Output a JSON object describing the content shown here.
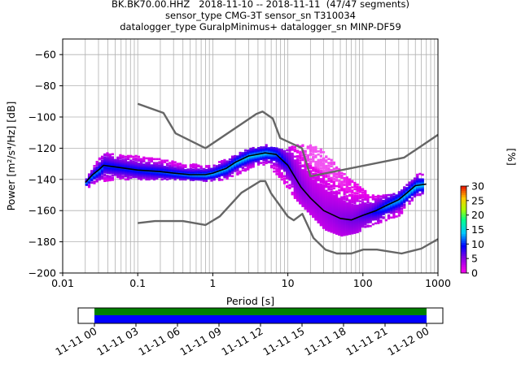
{
  "title": {
    "line1": "BK.BK70.00.HHZ   2018-11-10 -- 2018-11-11  (47/47 segments)",
    "line2": "sensor_type CMG-3T sensor_sn T310034",
    "line3": "datalogger_type GuralpMinimus+ datalogger_sn MINP-DF59"
  },
  "chart_data": {
    "type": "heatmap",
    "xlabel": "Period [s]",
    "ylabel": "Power [m²/s⁴/Hz] [dB]",
    "xscale": "log",
    "xlim": [
      0.01,
      1000
    ],
    "ylim": [
      -200,
      -50
    ],
    "grid": true,
    "x_tick_labels": [
      "0.01",
      "0.1",
      "1",
      "10",
      "100",
      "1000"
    ],
    "x_tick_values": [
      0.01,
      0.1,
      1,
      10,
      100,
      1000
    ],
    "y_tick_values": [
      -200,
      -180,
      -160,
      -140,
      -120,
      -100,
      -80,
      -60
    ],
    "y_tick_labels": [
      "−200",
      "−180",
      "−160",
      "−140",
      "−120",
      "−100",
      "−80",
      "−60"
    ],
    "colorbar": {
      "label": "[%]",
      "range": [
        0,
        30
      ],
      "tick_values": [
        0,
        5,
        10,
        15,
        20,
        25,
        30
      ],
      "tick_labels": [
        "0",
        "5",
        "10",
        "15",
        "20",
        "25",
        "30"
      ]
    },
    "series": [
      {
        "name": "",
        "kind": "median",
        "color": "#000000",
        "x": [
          0.02,
          0.025,
          0.03,
          0.035,
          0.05,
          0.1,
          0.2,
          0.3,
          0.5,
          0.8,
          1.0,
          1.5,
          2.0,
          3.0,
          5.0,
          7.0,
          10.0,
          15.0,
          20.0,
          30.0,
          50.0,
          70.0,
          100.0,
          150.0,
          200.0,
          300.0,
          400.0,
          500.0,
          700.0
        ],
        "y": [
          -142,
          -137,
          -134,
          -131,
          -132,
          -134,
          -135,
          -136,
          -137,
          -137,
          -136,
          -133,
          -129,
          -125,
          -123,
          -124,
          -131,
          -145,
          -152,
          -160,
          -165,
          -166,
          -163,
          -160,
          -157,
          -153,
          -148,
          -144,
          -143
        ]
      },
      {
        "name": "",
        "kind": "high_noise_model",
        "color": "#666666",
        "x": [
          0.1,
          0.22,
          0.32,
          0.8,
          3.8,
          4.6,
          6.3,
          7.9,
          15.4,
          20.0,
          354.8,
          1000.0
        ],
        "y": [
          -91.5,
          -97.4,
          -110.5,
          -120.0,
          -98.0,
          -96.5,
          -101.0,
          -113.5,
          -120.0,
          -138.0,
          -126.0,
          -111.4
        ]
      },
      {
        "name": "",
        "kind": "low_noise_model",
        "color": "#666666",
        "x": [
          0.1,
          0.17,
          0.4,
          0.8,
          1.24,
          2.4,
          4.3,
          5.0,
          6.0,
          10.0,
          12.0,
          15.6,
          21.9,
          31.6,
          45.0,
          70.0,
          101.0,
          154.0,
          328.0,
          600.0,
          1000.0
        ],
        "y": [
          -168.0,
          -166.7,
          -166.7,
          -169.2,
          -163.7,
          -148.6,
          -141.1,
          -141.1,
          -149.0,
          -163.8,
          -166.2,
          -162.1,
          -177.5,
          -185.0,
          -187.5,
          -187.5,
          -185.0,
          -185.0,
          -187.5,
          -184.4,
          -178.3
        ]
      }
    ],
    "density_bands": [
      {
        "x": 0.02,
        "y_min": -146,
        "y_max": -139,
        "pct": 12
      },
      {
        "x": 0.03,
        "y_min": -140,
        "y_max": -126,
        "pct": 12
      },
      {
        "x": 0.035,
        "y_min": -141,
        "y_max": -123,
        "pct": 10
      },
      {
        "x": 0.05,
        "y_min": -140,
        "y_max": -124,
        "pct": 10
      },
      {
        "x": 0.1,
        "y_min": -140,
        "y_max": -125,
        "pct": 10
      },
      {
        "x": 0.2,
        "y_min": -140,
        "y_max": -127,
        "pct": 11
      },
      {
        "x": 0.4,
        "y_min": -140,
        "y_max": -130,
        "pct": 12
      },
      {
        "x": 0.8,
        "y_min": -141,
        "y_max": -131,
        "pct": 13
      },
      {
        "x": 1.5,
        "y_min": -140,
        "y_max": -127,
        "pct": 13
      },
      {
        "x": 3.0,
        "y_min": -133,
        "y_max": -120,
        "pct": 14
      },
      {
        "x": 5.0,
        "y_min": -130,
        "y_max": -118,
        "pct": 14
      },
      {
        "x": 8.0,
        "y_min": -140,
        "y_max": -121,
        "pct": 10
      },
      {
        "x": 12.0,
        "y_min": -152,
        "y_max": -118,
        "pct": 6
      },
      {
        "x": 20.0,
        "y_min": -163,
        "y_max": -118,
        "pct": 4
      },
      {
        "x": 30.0,
        "y_min": -172,
        "y_max": -122,
        "pct": 4
      },
      {
        "x": 50.0,
        "y_min": -176,
        "y_max": -135,
        "pct": 5
      },
      {
        "x": 80.0,
        "y_min": -174,
        "y_max": -143,
        "pct": 6
      },
      {
        "x": 120.0,
        "y_min": -170,
        "y_max": -150,
        "pct": 8
      },
      {
        "x": 200.0,
        "y_min": -166,
        "y_max": -150,
        "pct": 12
      },
      {
        "x": 300.0,
        "y_min": -163,
        "y_max": -148,
        "pct": 13
      },
      {
        "x": 500.0,
        "y_min": -150,
        "y_max": -136,
        "pct": 14
      },
      {
        "x": 650.0,
        "y_min": -150,
        "y_max": -137,
        "pct": 14
      }
    ]
  },
  "timeline": {
    "colors": {
      "top": "#008000",
      "bottom": "#0000ff"
    },
    "tick_labels": [
      "11-11 00",
      "11-11 03",
      "11-11 06",
      "11-11 09",
      "11-11 12",
      "11-11 15",
      "11-11 18",
      "11-11 21",
      "11-12 00"
    ]
  }
}
